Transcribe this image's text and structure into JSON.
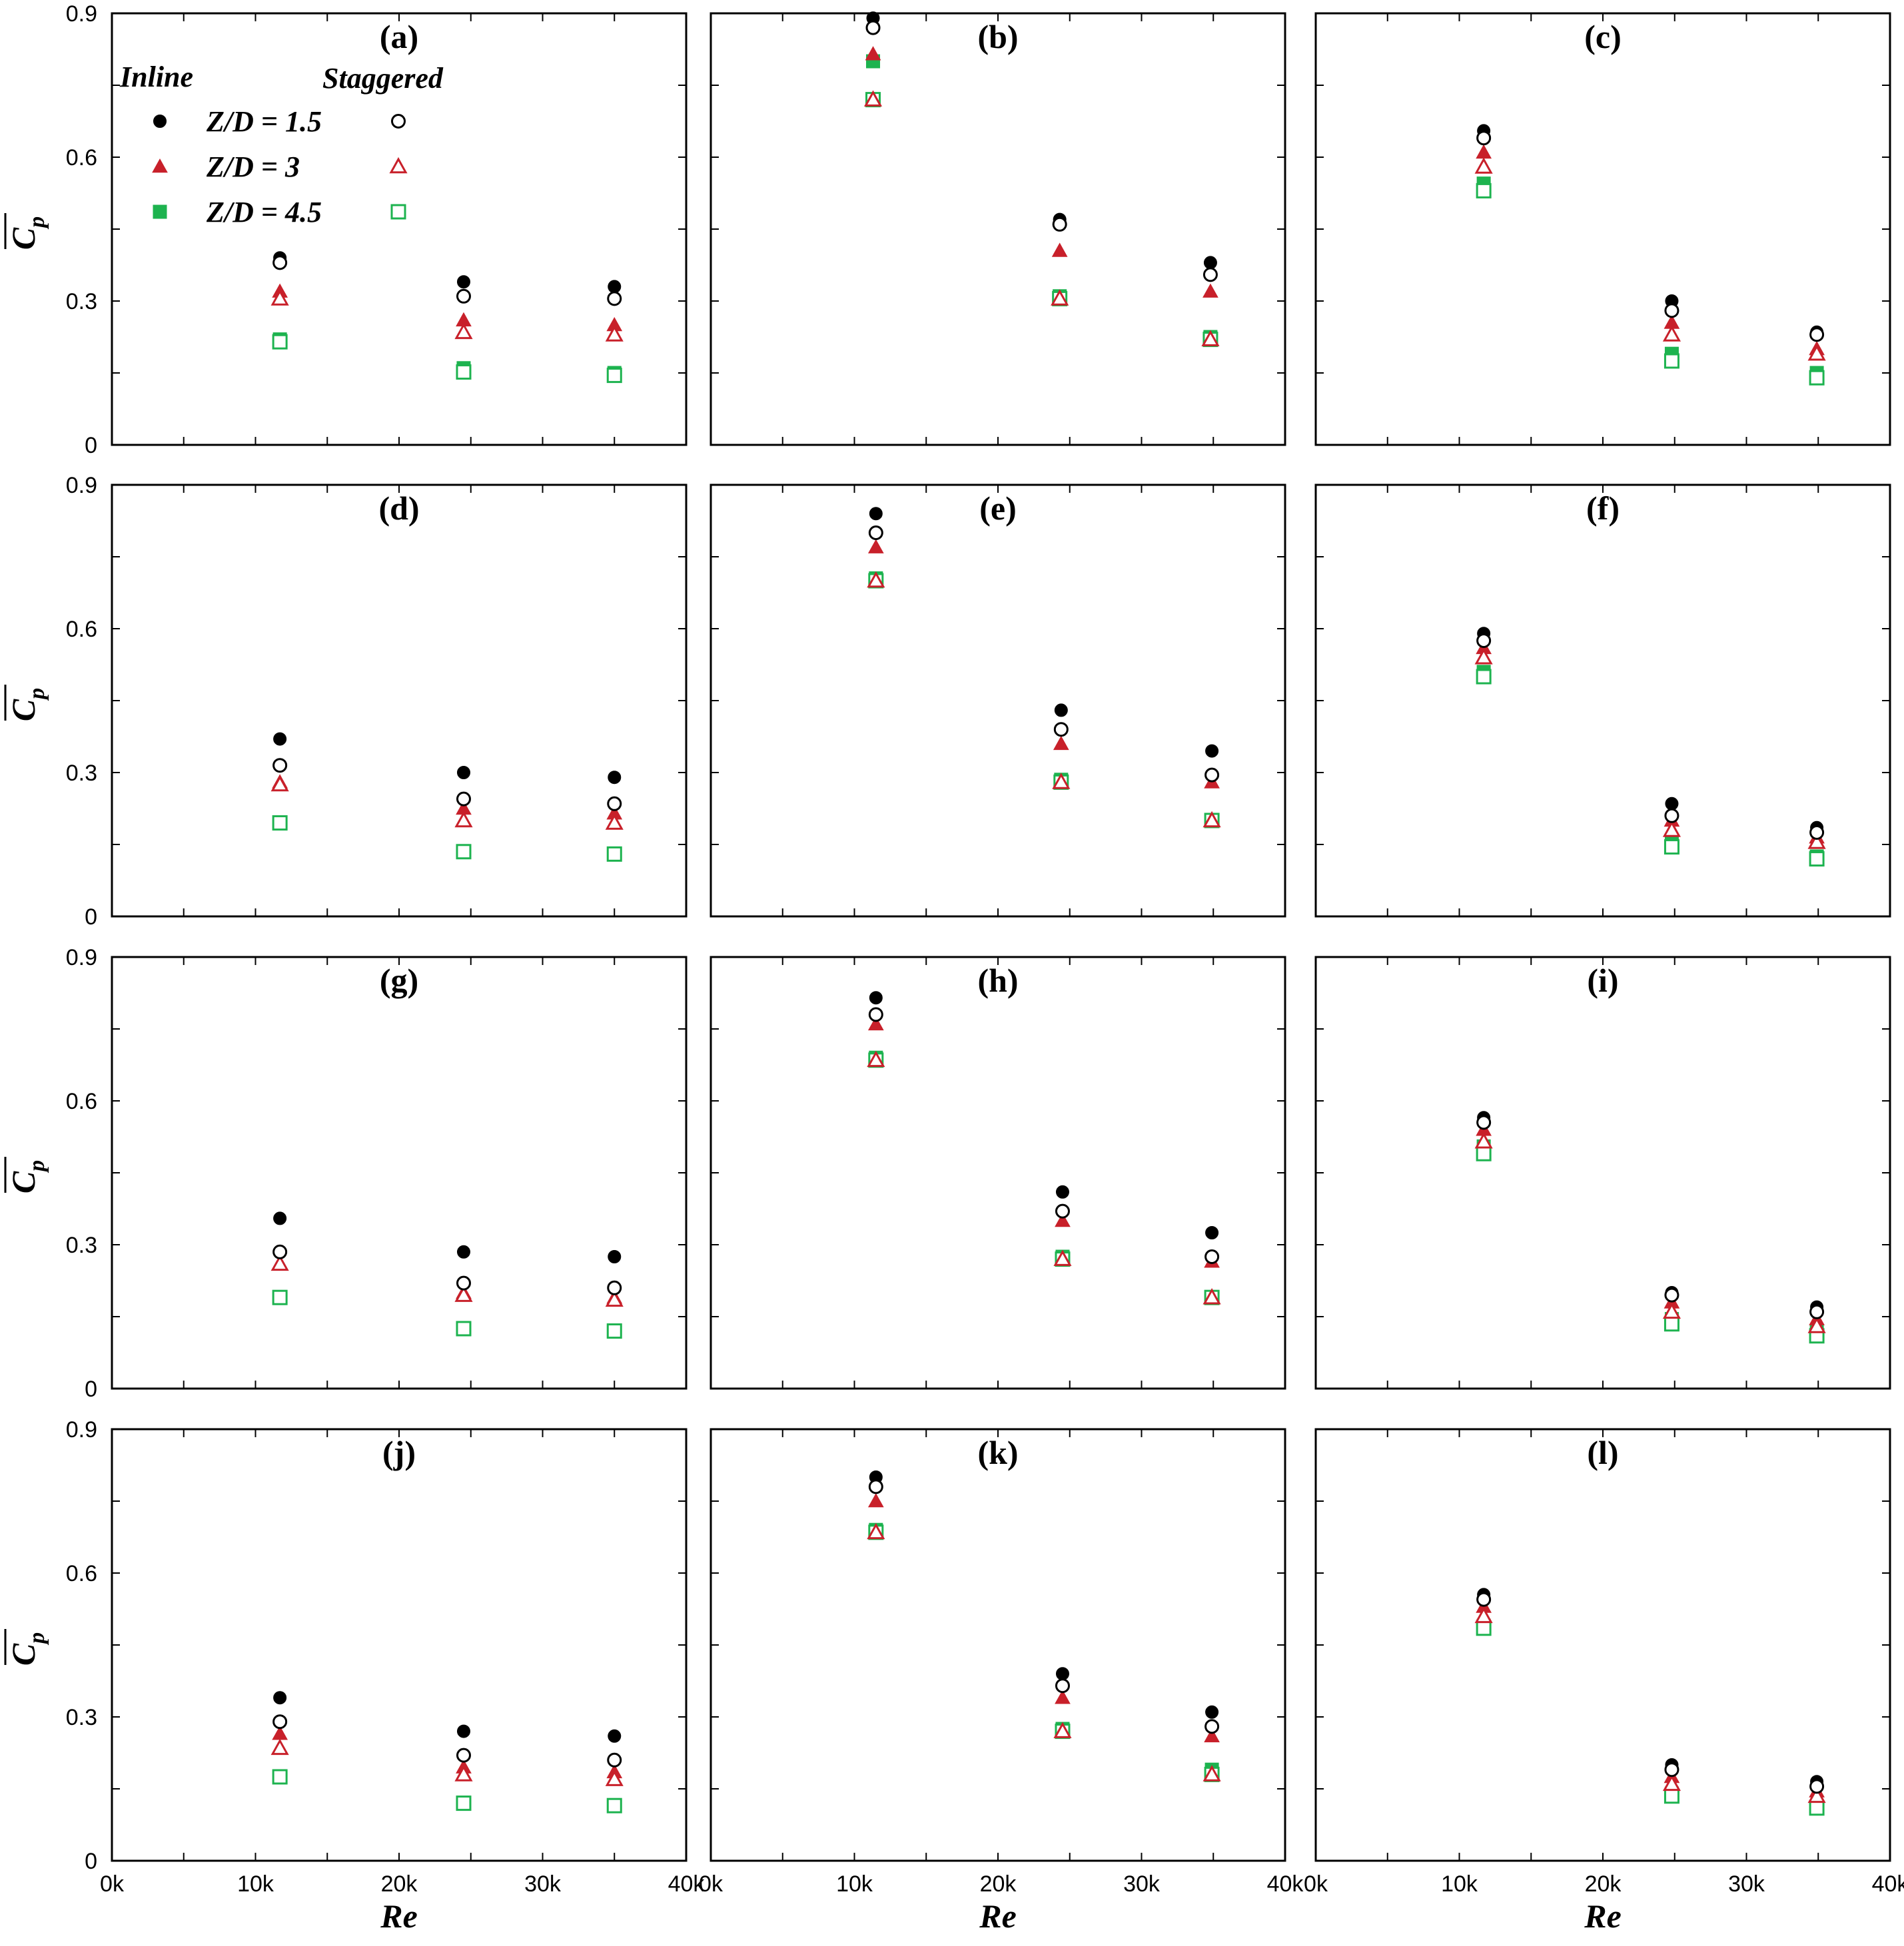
{
  "chart_data": {
    "type": "scatter",
    "layout": "4x3 grid of panels",
    "xlabel": "Re",
    "ylabel": "C_p (overlined)",
    "xlim": [
      0,
      40000
    ],
    "ylim": [
      0,
      0.9
    ],
    "x_ticks": [
      0,
      10000,
      20000,
      30000,
      40000
    ],
    "x_tick_labels": [
      "0k",
      "10k",
      "20k",
      "30k",
      "40k"
    ],
    "y_ticks": [
      0,
      0.3,
      0.6,
      0.9
    ],
    "y_tick_labels": [
      "0",
      "0.3",
      "0.6",
      "0.9"
    ],
    "legend": {
      "location": "top-left of panel (a)",
      "column_headers": [
        "Inline",
        "Staggered"
      ],
      "rows": [
        "Z/D = 1.5",
        "Z/D = 3",
        "Z/D = 4.5"
      ]
    },
    "series_style": [
      {
        "key": "in15",
        "name": "Inline Z/D = 1.5",
        "marker": "circle",
        "filled": true,
        "color": "#000000"
      },
      {
        "key": "st15",
        "name": "Staggered Z/D = 1.5",
        "marker": "circle",
        "filled": false,
        "color": "#000000"
      },
      {
        "key": "in3",
        "name": "Inline Z/D = 3",
        "marker": "triangle",
        "filled": true,
        "color": "#c8202a"
      },
      {
        "key": "st3",
        "name": "Staggered Z/D = 3",
        "marker": "triangle",
        "filled": false,
        "color": "#c8202a"
      },
      {
        "key": "in45",
        "name": "Inline Z/D = 4.5",
        "marker": "square",
        "filled": true,
        "color": "#1db34f"
      },
      {
        "key": "st45",
        "name": "Staggered Z/D = 4.5",
        "marker": "square",
        "filled": false,
        "color": "#1db34f"
      }
    ],
    "panels": [
      {
        "label": "(a)",
        "x": [
          11700,
          24500,
          35000
        ],
        "in15": [
          0.39,
          0.34,
          0.33
        ],
        "st15": [
          0.38,
          0.31,
          0.305
        ],
        "in3": [
          0.32,
          0.26,
          0.25
        ],
        "st3": [
          0.305,
          0.235,
          0.23
        ],
        "in45": [
          0.22,
          0.16,
          0.15
        ],
        "st45": [
          0.215,
          0.152,
          0.145
        ]
      },
      {
        "label": "(b)",
        "x": [
          11300,
          24300,
          34800
        ],
        "in15": [
          0.89,
          0.47,
          0.38
        ],
        "st15": [
          0.87,
          0.46,
          0.355
        ],
        "in3": [
          0.815,
          0.405,
          0.32
        ],
        "st3": [
          0.72,
          0.305,
          0.22
        ],
        "in45": [
          0.8,
          0.31,
          0.225
        ],
        "st45": [
          0.72,
          0.305,
          0.22
        ]
      },
      {
        "label": "(c)",
        "x": [
          11700,
          24800,
          34900
        ],
        "in15": [
          0.655,
          0.3,
          0.235
        ],
        "st15": [
          0.64,
          0.28,
          0.23
        ],
        "in3": [
          0.61,
          0.255,
          0.2
        ],
        "st3": [
          0.58,
          0.23,
          0.19
        ],
        "in45": [
          0.545,
          0.19,
          0.15
        ],
        "st45": [
          0.53,
          0.175,
          0.14
        ]
      },
      {
        "label": "(d)",
        "x": [
          11700,
          24500,
          35000
        ],
        "in15": [
          0.37,
          0.3,
          0.29
        ],
        "st15": [
          0.315,
          0.245,
          0.235
        ],
        "in3": [
          0.28,
          0.225,
          0.215
        ],
        "st3": [
          0.275,
          0.2,
          0.195
        ],
        "in45": [
          0.195,
          0.135,
          0.13
        ],
        "st45": [
          0.195,
          0.135,
          0.13
        ]
      },
      {
        "label": "(e)",
        "x": [
          11500,
          24400,
          34900
        ],
        "in15": [
          0.84,
          0.43,
          0.345
        ],
        "st15": [
          0.8,
          0.39,
          0.295
        ],
        "in3": [
          0.77,
          0.36,
          0.28
        ],
        "st3": [
          0.7,
          0.28,
          0.2
        ],
        "in45": [
          0.705,
          0.285,
          0.2
        ],
        "st45": [
          0.7,
          0.28,
          0.2
        ]
      },
      {
        "label": "(f)",
        "x": [
          11700,
          24800,
          34900
        ],
        "in15": [
          0.59,
          0.235,
          0.185
        ],
        "st15": [
          0.575,
          0.21,
          0.175
        ],
        "in3": [
          0.56,
          0.2,
          0.165
        ],
        "st3": [
          0.54,
          0.18,
          0.155
        ],
        "in45": [
          0.51,
          0.155,
          0.125
        ],
        "st45": [
          0.5,
          0.145,
          0.12
        ]
      },
      {
        "label": "(g)",
        "x": [
          11700,
          24500,
          35000
        ],
        "in15": [
          0.355,
          0.285,
          0.275
        ],
        "st15": [
          0.285,
          0.22,
          0.21
        ],
        "in3": [
          0.26,
          0.2,
          0.19
        ],
        "st3": [
          0.26,
          0.195,
          0.185
        ],
        "in45": [
          0.19,
          0.125,
          0.12
        ],
        "st45": [
          0.19,
          0.125,
          0.12
        ]
      },
      {
        "label": "(h)",
        "x": [
          11500,
          24500,
          34900
        ],
        "in15": [
          0.815,
          0.41,
          0.325
        ],
        "st15": [
          0.78,
          0.37,
          0.275
        ],
        "in3": [
          0.76,
          0.35,
          0.265
        ],
        "st3": [
          0.685,
          0.27,
          0.19
        ],
        "in45": [
          0.69,
          0.275,
          0.19
        ],
        "st45": [
          0.685,
          0.27,
          0.19
        ]
      },
      {
        "label": "(i)",
        "x": [
          11700,
          24800,
          34900
        ],
        "in15": [
          0.565,
          0.2,
          0.17
        ],
        "st15": [
          0.555,
          0.195,
          0.16
        ],
        "in3": [
          0.54,
          0.18,
          0.145
        ],
        "st3": [
          0.515,
          0.16,
          0.13
        ],
        "in45": [
          0.505,
          0.145,
          0.12
        ],
        "st45": [
          0.49,
          0.135,
          0.11
        ]
      },
      {
        "label": "(j)",
        "x": [
          11700,
          24500,
          35000
        ],
        "in15": [
          0.34,
          0.27,
          0.26
        ],
        "st15": [
          0.29,
          0.22,
          0.21
        ],
        "in3": [
          0.265,
          0.195,
          0.185
        ],
        "st3": [
          0.235,
          0.18,
          0.17
        ],
        "in45": [
          0.175,
          0.12,
          0.115
        ],
        "st45": [
          0.175,
          0.12,
          0.115
        ]
      },
      {
        "label": "(k)",
        "x": [
          11500,
          24500,
          34900
        ],
        "in15": [
          0.8,
          0.39,
          0.31
        ],
        "st15": [
          0.78,
          0.365,
          0.28
        ],
        "in3": [
          0.75,
          0.34,
          0.26
        ],
        "st3": [
          0.685,
          0.27,
          0.18
        ],
        "in45": [
          0.69,
          0.275,
          0.19
        ],
        "st45": [
          0.685,
          0.27,
          0.18
        ]
      },
      {
        "label": "(l)",
        "x": [
          11700,
          24800,
          34900
        ],
        "in15": [
          0.555,
          0.2,
          0.165
        ],
        "st15": [
          0.545,
          0.19,
          0.155
        ],
        "in3": [
          0.53,
          0.175,
          0.145
        ],
        "st3": [
          0.51,
          0.16,
          0.135
        ],
        "in45": [
          0.49,
          0.14,
          0.11
        ],
        "st45": [
          0.485,
          0.135,
          0.11
        ]
      }
    ]
  }
}
